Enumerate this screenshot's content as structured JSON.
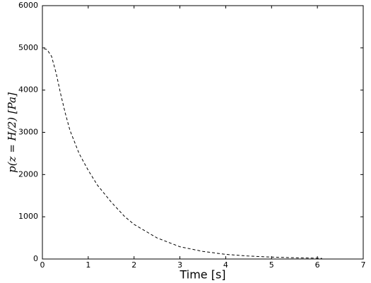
{
  "chart_data": {
    "type": "line",
    "xlabel": "Time [s]",
    "ylabel": "p(z = H/2)   [Pa]",
    "series": [
      {
        "color": "#000000",
        "x": [
          0,
          0,
          0.1,
          0.2,
          0.3,
          0.4,
          0.5,
          0.6,
          0.8,
          1.0,
          1.2,
          1.5,
          1.8,
          2.0,
          2.5,
          3.0,
          3.5,
          4.0,
          4.5,
          5.0,
          5.5,
          6.0,
          6.1
        ],
        "values": [
          0,
          4990,
          4960,
          4800,
          4400,
          3900,
          3450,
          3050,
          2500,
          2100,
          1750,
          1350,
          1000,
          820,
          500,
          290,
          180,
          110,
          70,
          45,
          30,
          20,
          15
        ]
      }
    ],
    "xlim": [
      0,
      7
    ],
    "xticks": [
      0,
      1,
      2,
      3,
      4,
      5,
      6,
      7
    ],
    "ylim": [
      0,
      6000
    ],
    "yticks": [
      0,
      1000,
      2000,
      3000,
      4000,
      5000,
      6000
    ],
    "line_style": "dashed"
  }
}
